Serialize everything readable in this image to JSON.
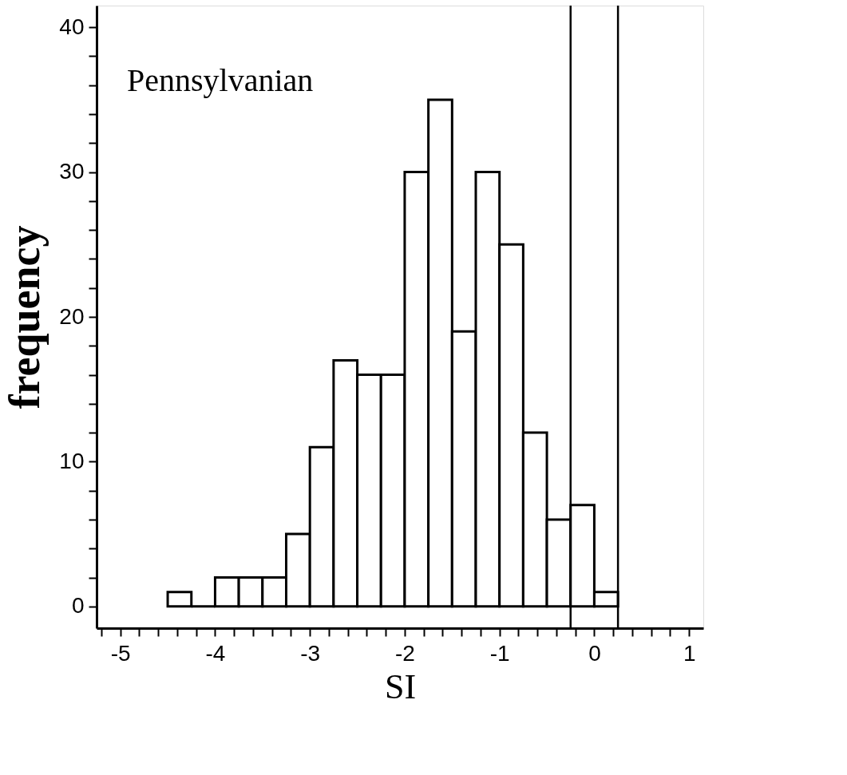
{
  "chart_data": {
    "type": "histogram",
    "xlabel": "SI",
    "ylabel": "frequency",
    "annotations": [
      "Pennsylvanian"
    ],
    "bins": [
      -4.5,
      -4.25,
      -4.0,
      -3.75,
      -3.5,
      -3.25,
      -3.0,
      -2.75,
      -2.5,
      -2.25,
      -2.0,
      -1.75,
      -1.5,
      -1.25,
      -1.0,
      -0.75,
      -0.5,
      -0.25,
      0.0,
      0.25
    ],
    "values": [
      1,
      0,
      2,
      2,
      2,
      5,
      11,
      17,
      16,
      16,
      30,
      35,
      19,
      30,
      25,
      12,
      6,
      7,
      1
    ],
    "xlim": [
      -5.25,
      1.15
    ],
    "ylim": [
      -1.5,
      41.5
    ],
    "xticks": [
      -5,
      -4,
      -3,
      -2,
      -1,
      0,
      1,
      {
        "value": -5.2,
        "label": null
      },
      {
        "value": -4.8,
        "label": null
      },
      {
        "value": -4.6,
        "label": null
      },
      {
        "value": -4.4,
        "label": null
      },
      {
        "value": -4.2,
        "label": null
      },
      {
        "value": -3.8,
        "label": null
      },
      {
        "value": -3.6,
        "label": null
      },
      {
        "value": -3.4,
        "label": null
      },
      {
        "value": -3.2,
        "label": null
      },
      {
        "value": -2.8,
        "label": null
      },
      {
        "value": -2.6,
        "label": null
      },
      {
        "value": -2.4,
        "label": null
      },
      {
        "value": -2.2,
        "label": null
      },
      {
        "value": -1.8,
        "label": null
      },
      {
        "value": -1.6,
        "label": null
      },
      {
        "value": -1.4,
        "label": null
      },
      {
        "value": -1.2,
        "label": null
      },
      {
        "value": -0.8,
        "label": null
      },
      {
        "value": -0.6,
        "label": null
      },
      {
        "value": -0.4,
        "label": null
      },
      {
        "value": -0.2,
        "label": null
      },
      {
        "value": 0.2,
        "label": null
      },
      {
        "value": 0.4,
        "label": null
      },
      {
        "value": 0.6,
        "label": null
      },
      {
        "value": 0.8,
        "label": null
      }
    ],
    "yticks": [
      0,
      10,
      20,
      30,
      40,
      {
        "value": 2,
        "label": null
      },
      {
        "value": 4,
        "label": null
      },
      {
        "value": 6,
        "label": null
      },
      {
        "value": 8,
        "label": null
      },
      {
        "value": 12,
        "label": null
      },
      {
        "value": 14,
        "label": null
      },
      {
        "value": 16,
        "label": null
      },
      {
        "value": 18,
        "label": null
      },
      {
        "value": 22,
        "label": null
      },
      {
        "value": 24,
        "label": null
      },
      {
        "value": 26,
        "label": null
      },
      {
        "value": 28,
        "label": null
      },
      {
        "value": 32,
        "label": null
      },
      {
        "value": 34,
        "label": null
      },
      {
        "value": 36,
        "label": null
      },
      {
        "value": 38,
        "label": null
      }
    ],
    "ref_lines": [
      {
        "axis": "x",
        "value": -0.25,
        "color": "#000000"
      },
      {
        "axis": "x",
        "value": 0.25,
        "color": "#000000"
      }
    ],
    "grid": false
  }
}
